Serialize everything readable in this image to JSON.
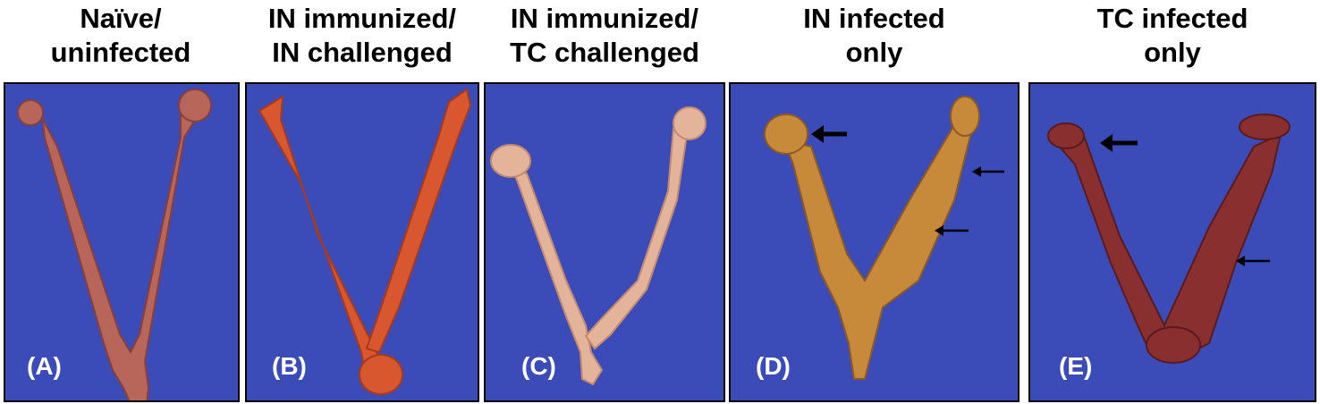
{
  "panels": [
    {
      "title_line1": "Naïve/",
      "title_line2": "uninfected",
      "label": "(A)",
      "tissue_color": "#b8655a",
      "tissue_dark": "#8a3f38"
    },
    {
      "title_line1": "IN immunized/",
      "title_line2": "IN challenged",
      "label": "(B)",
      "tissue_color": "#d9572e",
      "tissue_dark": "#a83a1a"
    },
    {
      "title_line1": "IN immunized/",
      "title_line2": "TC challenged",
      "label": "(C)",
      "tissue_color": "#e3b49a",
      "tissue_dark": "#c48a70"
    },
    {
      "title_line1": "IN infected",
      "title_line2": "only",
      "label": "(D)",
      "tissue_color": "#c78a3a",
      "tissue_dark": "#8e5a22"
    },
    {
      "title_line1": "TC infected",
      "title_line2": "only",
      "label": "(E)",
      "tissue_color": "#8a2f2f",
      "tissue_dark": "#5a1a1e"
    }
  ],
  "background_color": "#3b4cb8",
  "arrow_color": "#000000"
}
